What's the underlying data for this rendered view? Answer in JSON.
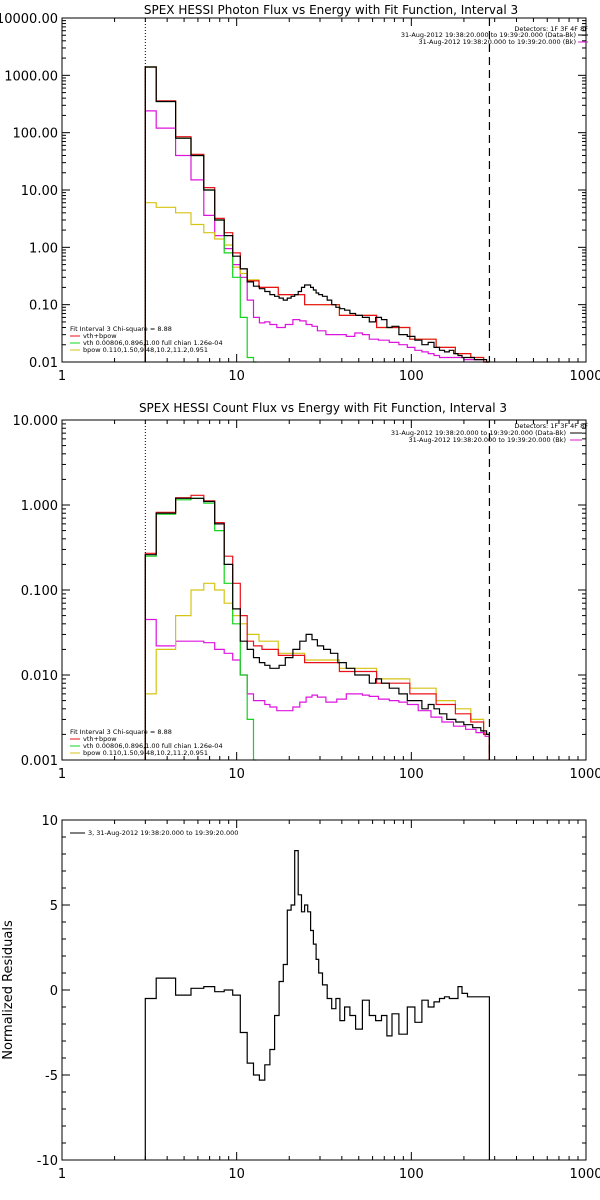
{
  "colors": {
    "data": "#000000",
    "model": "#e8101a",
    "vth": "#12d41c",
    "bpow": "#d6c414",
    "bk": "#dd14dd"
  },
  "chart_data": [
    {
      "type": "line",
      "title": "SPEX HESSI Photon Flux vs Energy with Fit Function, Interval 3",
      "xlabel": "",
      "ylabel": "",
      "xscale": "log",
      "yscale": "log",
      "xlim": [
        1,
        1000
      ],
      "ylim": [
        0.01,
        10000
      ],
      "xtick_labels": [
        "1",
        "10",
        "100",
        "1000"
      ],
      "ytick_labels": [
        "0.01",
        "0.10",
        "1.00",
        "10.00",
        "100.00",
        "1000.00",
        "10000.00"
      ],
      "legend_topright": [
        "Detectors: 1F 3F 4F 8F",
        "31-Aug-2012 19:38:20.000 to 19:39:20.000 (Data-Bk)",
        "31-Aug-2012 19:38:20.000 to 19:39:20.000 (Bk)"
      ],
      "legend_bottomleft": [
        "Fit Interval 3   Chi-square = 8.88",
        "vth+bpow",
        "vth 0.00806,0.896,1.00   full chian 1.26e-04",
        "bpow 0.110,1.50,9.48,10.2,11.2,0.951"
      ],
      "vlines": [
        3,
        280
      ],
      "series": [
        {
          "name": "Data-Bk",
          "color": "#000000",
          "x": [
            3,
            4,
            5,
            6,
            7,
            8,
            9,
            10,
            11,
            12,
            13,
            14,
            15,
            16,
            17,
            18,
            19,
            20,
            21,
            22,
            23,
            24,
            25,
            26,
            27,
            28,
            29,
            30,
            32,
            34,
            36,
            38,
            40,
            43,
            46,
            50,
            55,
            60,
            65,
            70,
            75,
            80,
            90,
            100,
            110,
            120,
            130,
            140,
            150,
            160,
            170,
            180,
            190,
            200,
            220,
            240,
            260,
            280
          ],
          "y": [
            1400,
            350,
            80,
            40,
            10,
            3,
            1.6,
            0.7,
            0.42,
            0.25,
            0.21,
            0.19,
            0.17,
            0.15,
            0.14,
            0.13,
            0.12,
            0.13,
            0.14,
            0.15,
            0.17,
            0.2,
            0.22,
            0.22,
            0.2,
            0.18,
            0.16,
            0.15,
            0.14,
            0.12,
            0.1,
            0.09,
            0.085,
            0.08,
            0.07,
            0.065,
            0.06,
            0.05,
            0.06,
            0.055,
            0.04,
            0.042,
            0.03,
            0.028,
            0.024,
            0.02,
            0.022,
            0.018,
            0.016,
            0.015,
            0.016,
            0.014,
            0.013,
            0.012,
            0.012,
            0.011,
            0.011,
            0.01
          ]
        },
        {
          "name": "vth+bpow",
          "color": "#e8101a",
          "x": [
            3,
            4,
            5,
            6,
            7,
            8,
            9,
            10,
            11,
            12,
            15,
            20,
            30,
            50,
            80,
            120,
            160,
            200,
            240,
            280
          ],
          "y": [
            1400,
            360,
            85,
            42,
            11,
            3.2,
            1.8,
            0.8,
            0.42,
            0.26,
            0.2,
            0.15,
            0.1,
            0.065,
            0.04,
            0.025,
            0.018,
            0.014,
            0.012,
            0.01
          ]
        },
        {
          "name": "vth",
          "color": "#12d41c",
          "x": [
            3,
            4,
            5,
            6,
            7,
            8,
            9,
            10,
            11,
            12,
            13
          ],
          "y": [
            1400,
            350,
            80,
            40,
            10,
            3,
            0.8,
            0.3,
            0.06,
            0.012,
            0.005
          ]
        },
        {
          "name": "bpow",
          "color": "#d6c414",
          "x": [
            3,
            4,
            5,
            6,
            7,
            8,
            9,
            10,
            11,
            12,
            15,
            20,
            30,
            50,
            80,
            120,
            160,
            200,
            240,
            280
          ],
          "y": [
            6,
            5,
            4,
            2.5,
            1.8,
            1.4,
            1.1,
            0.45,
            0.35,
            0.27,
            0.2,
            0.15,
            0.1,
            0.065,
            0.04,
            0.025,
            0.018,
            0.014,
            0.012,
            0.01
          ]
        },
        {
          "name": "Bk",
          "color": "#dd14dd",
          "x": [
            3,
            4,
            5,
            6,
            7,
            8,
            9,
            10,
            11,
            12,
            13,
            14,
            15,
            16,
            18,
            20,
            22,
            24,
            26,
            28,
            30,
            35,
            40,
            45,
            50,
            55,
            60,
            70,
            80,
            90,
            100,
            110,
            120,
            130,
            140,
            150,
            170,
            190,
            210,
            240,
            280
          ],
          "y": [
            240,
            120,
            40,
            15,
            3.6,
            1.6,
            0.95,
            0.5,
            0.3,
            0.12,
            0.06,
            0.048,
            0.05,
            0.045,
            0.04,
            0.045,
            0.055,
            0.052,
            0.045,
            0.042,
            0.035,
            0.03,
            0.03,
            0.028,
            0.032,
            0.03,
            0.025,
            0.024,
            0.022,
            0.02,
            0.018,
            0.016,
            0.015,
            0.014,
            0.013,
            0.012,
            0.012,
            0.012,
            0.011,
            0.011,
            0.01
          ]
        }
      ]
    },
    {
      "type": "line",
      "title": "SPEX HESSI Count Flux vs Energy with Fit Function, Interval 3",
      "xlabel": "",
      "ylabel": "",
      "xscale": "log",
      "yscale": "log",
      "xlim": [
        1,
        1000
      ],
      "ylim": [
        0.001,
        10
      ],
      "xtick_labels": [
        "1",
        "10",
        "100",
        "1000"
      ],
      "ytick_labels": [
        "0.001",
        "0.010",
        "0.100",
        "1.000",
        "10.000"
      ],
      "legend_topright": [
        "Detectors: 1F 3F 4F 8F",
        "31-Aug-2012 19:38:20.000 to 19:39:20.000 (Data-Bk)",
        "31-Aug-2012 19:38:20.000 to 19:39:20.000 (Bk)"
      ],
      "legend_bottomleft": [
        "Fit Interval 3   Chi-square = 8.88",
        "vth+bpow",
        "vth 0.00806,0.896,1.00   full chian 1.26e-04",
        "bpow 0.110,1.50,9.48,10.2,11.2,0.951"
      ],
      "vlines": [
        3,
        280
      ],
      "series": [
        {
          "name": "Data-Bk",
          "color": "#000000",
          "x": [
            3,
            4,
            5,
            6,
            7,
            8,
            9,
            10,
            11,
            12,
            13,
            14,
            15,
            16,
            17,
            18,
            20,
            22,
            24,
            26,
            28,
            30,
            33,
            36,
            40,
            45,
            50,
            55,
            60,
            65,
            70,
            80,
            90,
            100,
            110,
            120,
            130,
            140,
            150,
            170,
            190,
            210,
            240,
            260,
            280
          ],
          "y": [
            0.26,
            0.8,
            1.2,
            1.2,
            1.1,
            0.6,
            0.2,
            0.06,
            0.025,
            0.02,
            0.016,
            0.014,
            0.013,
            0.012,
            0.012,
            0.013,
            0.016,
            0.02,
            0.025,
            0.03,
            0.026,
            0.022,
            0.02,
            0.018,
            0.014,
            0.012,
            0.01,
            0.01,
            0.008,
            0.009,
            0.008,
            0.007,
            0.006,
            0.005,
            0.005,
            0.004,
            0.0045,
            0.004,
            0.0035,
            0.003,
            0.0028,
            0.0026,
            0.0024,
            0.0022,
            0.002
          ]
        },
        {
          "name": "vth+bpow",
          "color": "#e8101a",
          "x": [
            3,
            4,
            5,
            6,
            7,
            8,
            9,
            10,
            11,
            12,
            13,
            15,
            20,
            30,
            50,
            80,
            120,
            160,
            200,
            240,
            280
          ],
          "y": [
            0.27,
            0.82,
            1.22,
            1.3,
            1.12,
            0.62,
            0.25,
            0.12,
            0.05,
            0.025,
            0.022,
            0.02,
            0.017,
            0.014,
            0.011,
            0.008,
            0.006,
            0.0045,
            0.0035,
            0.0028,
            0.002
          ]
        },
        {
          "name": "vth",
          "color": "#12d41c",
          "x": [
            3,
            4,
            5,
            6,
            7,
            8,
            9,
            10,
            11,
            12,
            13
          ],
          "y": [
            0.25,
            0.78,
            1.15,
            1.2,
            1.05,
            0.5,
            0.12,
            0.04,
            0.01,
            0.003,
            0.001
          ]
        },
        {
          "name": "bpow",
          "color": "#d6c414",
          "x": [
            3,
            4,
            5,
            6,
            7,
            8,
            9,
            10,
            11,
            12,
            15,
            20,
            30,
            50,
            80,
            120,
            160,
            200,
            240,
            280
          ],
          "y": [
            0.006,
            0.02,
            0.05,
            0.1,
            0.12,
            0.1,
            0.07,
            0.05,
            0.04,
            0.03,
            0.025,
            0.018,
            0.015,
            0.012,
            0.009,
            0.007,
            0.005,
            0.004,
            0.003,
            0.002
          ]
        },
        {
          "name": "Bk",
          "color": "#dd14dd",
          "x": [
            3,
            4,
            5,
            6,
            7,
            8,
            9,
            10,
            11,
            12,
            13,
            14,
            15,
            16,
            18,
            20,
            22,
            24,
            26,
            28,
            30,
            35,
            40,
            45,
            50,
            55,
            60,
            70,
            80,
            90,
            100,
            120,
            140,
            160,
            190,
            220,
            250,
            280
          ],
          "y": [
            0.045,
            0.022,
            0.025,
            0.025,
            0.024,
            0.02,
            0.018,
            0.015,
            0.01,
            0.006,
            0.005,
            0.005,
            0.0045,
            0.0042,
            0.0038,
            0.0038,
            0.0042,
            0.0048,
            0.0055,
            0.0058,
            0.0055,
            0.0048,
            0.0052,
            0.006,
            0.006,
            0.0058,
            0.0056,
            0.0052,
            0.005,
            0.0048,
            0.0045,
            0.0038,
            0.0032,
            0.0028,
            0.0025,
            0.0023,
            0.0021,
            0.0019
          ]
        }
      ]
    },
    {
      "type": "line",
      "title": "",
      "xlabel": "",
      "ylabel": "Normalized Residuals",
      "xscale": "log",
      "yscale": "linear",
      "xlim": [
        1,
        1000
      ],
      "ylim": [
        -10,
        10
      ],
      "xtick_labels": [
        "1",
        "10",
        "100",
        "1000"
      ],
      "ytick_labels": [
        "-10",
        "-5",
        "0",
        "5",
        "10"
      ],
      "legend": "3, 31-Aug-2012 19:38:20.000 to 19:39:20.000",
      "series": [
        {
          "name": "3, 31-Aug-2012 19:38:20.000 to 19:39:20.000",
          "color": "#000000",
          "x": [
            3,
            4,
            5,
            6,
            7,
            8,
            9,
            10,
            11,
            12,
            13,
            14,
            15,
            16,
            17,
            18,
            19,
            20,
            21,
            22,
            23,
            24,
            25,
            26,
            27,
            28,
            29,
            30,
            32,
            34,
            36,
            38,
            40,
            43,
            46,
            50,
            55,
            60,
            65,
            70,
            75,
            80,
            90,
            100,
            110,
            120,
            130,
            140,
            150,
            160,
            170,
            180,
            190,
            200,
            220,
            240,
            260,
            280
          ],
          "y": [
            -0.5,
            0.7,
            -0.3,
            0.1,
            0.2,
            -0.1,
            0.0,
            -0.3,
            -2.5,
            -4.3,
            -5.0,
            -5.3,
            -4.4,
            -3.5,
            -1.5,
            0.5,
            1.5,
            4.7,
            5.0,
            8.2,
            5.6,
            4.6,
            5.0,
            4.6,
            3.5,
            2.7,
            1.8,
            1.0,
            0.3,
            -0.5,
            -1.1,
            -0.5,
            -1.8,
            -1.0,
            -1.5,
            -2.3,
            -0.6,
            -1.5,
            -1.8,
            -1.5,
            -2.7,
            -1.4,
            -2.6,
            -1.0,
            -1.9,
            -0.6,
            -1.0,
            -0.7,
            -0.5,
            -0.4,
            -0.5,
            -0.5,
            0.2,
            -0.2,
            -0.4,
            -0.4,
            -0.4,
            -0.4
          ]
        }
      ]
    }
  ]
}
